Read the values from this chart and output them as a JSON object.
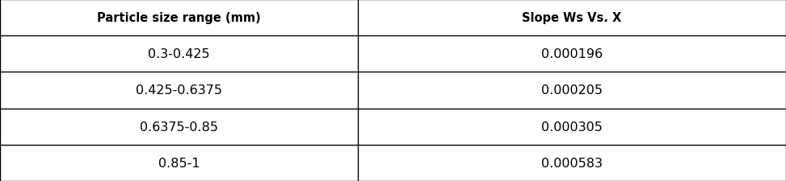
{
  "col_headers": [
    "Particle size range (mm)",
    "Slope Ws Vs. X"
  ],
  "rows": [
    [
      "0.3-0.425",
      "0.000196"
    ],
    [
      "0.425-0.6375",
      "0.000205"
    ],
    [
      "0.6375-0.85",
      "0.000305"
    ],
    [
      "0.85-1",
      "0.000583"
    ]
  ],
  "background_color": "#ffffff",
  "line_color": "#000000",
  "header_fontsize": 10.5,
  "cell_fontsize": 11.5,
  "header_font_weight": "bold",
  "col_split": 0.455,
  "fig_width": 9.73,
  "fig_height": 2.26,
  "dpi": 100
}
